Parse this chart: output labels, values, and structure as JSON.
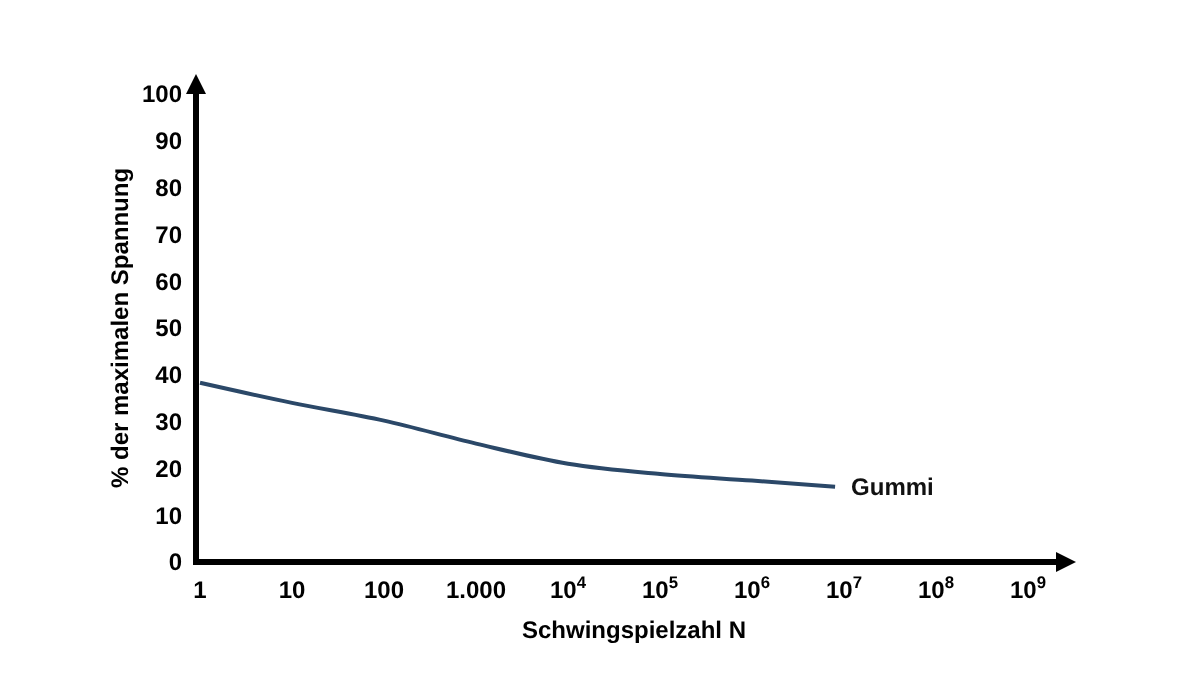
{
  "chart_data": {
    "type": "line",
    "xlabel": "Schwingspielzahl N",
    "ylabel": "% der maximalen Spannung",
    "log": "x",
    "xlim": [
      1,
      1000000000
    ],
    "ylim": [
      0,
      100
    ],
    "xticks": [
      1,
      10,
      100,
      {
        "value": 1000,
        "label": "1.000"
      },
      {
        "value": 10000,
        "label": "10$^{4}$"
      },
      {
        "value": 100000,
        "label": "10$^{5}$"
      },
      {
        "value": 1000000,
        "label": "10$^{6}$"
      },
      {
        "value": 10000000,
        "label": "10$^{7}$"
      },
      {
        "value": 100000000,
        "label": "10$^{8}$"
      },
      {
        "value": 1000000000,
        "label": "10$^{9}$"
      }
    ],
    "yticks": [
      0,
      10,
      20,
      30,
      40,
      50,
      60,
      70,
      80,
      90,
      100
    ],
    "series": [
      {
        "name": "Gummi",
        "color": "#2b4868",
        "x": [
          1,
          10,
          100,
          1000,
          10000,
          100000,
          1000000,
          8000000
        ],
        "values": [
          38.3,
          34,
          30.2,
          25.3,
          21,
          18.8,
          17.4,
          16.1
        ]
      }
    ]
  }
}
